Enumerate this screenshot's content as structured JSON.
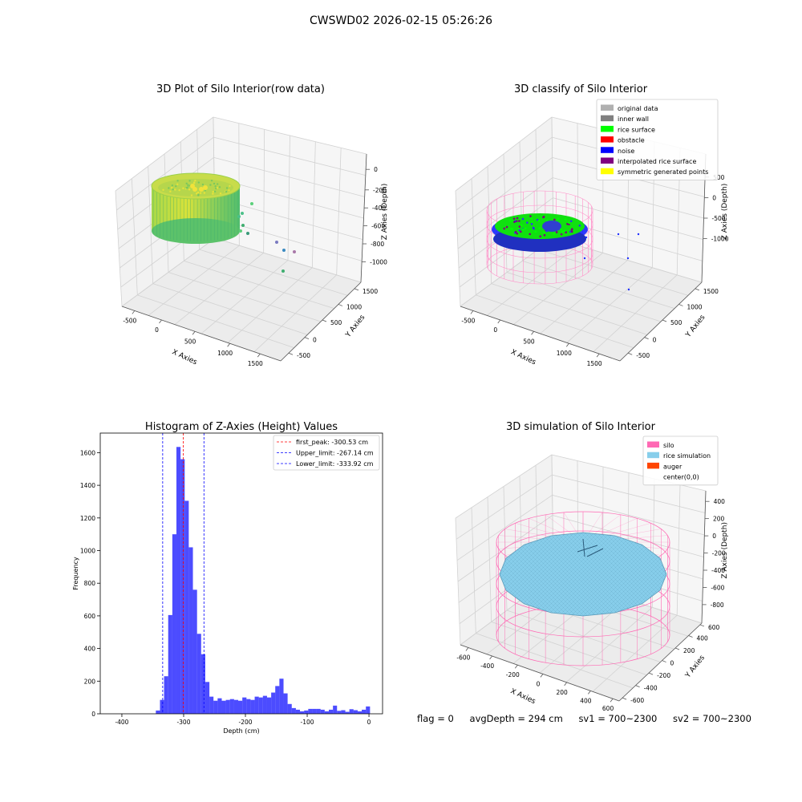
{
  "figure_title": "CWSWD02 2026-02-15 05:26:26",
  "status": {
    "flag": "flag = 0",
    "avg_depth": "avgDepth = 294 cm",
    "sv1": "sv1 = 700~2300",
    "sv2": "sv2 = 700~2300"
  },
  "chart_data": [
    {
      "type": "scatter",
      "projection": "3d",
      "title": "3D Plot of Silo Interior(row data)",
      "xlabel": "X Axies",
      "ylabel": "Y Axies",
      "zlabel": "Z Axies (Depth)",
      "x_ticks": [
        "-500",
        "0",
        "500",
        "1000",
        "1500"
      ],
      "y_ticks": [
        "-500",
        "0",
        "500",
        "1000",
        "1500"
      ],
      "z_ticks": [
        "0",
        "-200",
        "-400",
        "-600",
        "-800",
        "-1000"
      ],
      "xlim": [
        -650,
        1650
      ],
      "ylim": [
        -650,
        1650
      ],
      "zlim": [
        -1050,
        50
      ],
      "colormap": "viridis",
      "shape": "cylindrical rice surface point cloud",
      "outlier_points": [
        {
          "x": 1200,
          "y": 1150,
          "z": -650
        },
        {
          "x": 1300,
          "y": 1100,
          "z": -700
        },
        {
          "x": 1380,
          "y": 1050,
          "z": -720
        },
        {
          "x": 1350,
          "y": 1100,
          "z": -870
        },
        {
          "x": 900,
          "y": 950,
          "z": -350
        },
        {
          "x": 950,
          "y": 900,
          "z": -550
        }
      ]
    },
    {
      "type": "scatter",
      "projection": "3d",
      "title": "3D classify of Silo Interior",
      "xlabel": "X Axies",
      "ylabel": "Y Axies",
      "zlabel": "Z Axies (Depth)",
      "x_ticks": [
        "-500",
        "0",
        "500",
        "1000",
        "1500"
      ],
      "y_ticks": [
        "-500",
        "0",
        "500",
        "1000",
        "1500"
      ],
      "z_ticks": [
        "500",
        "0",
        "-500",
        "-1000"
      ],
      "xlim": [
        -650,
        1650
      ],
      "ylim": [
        -650,
        1650
      ],
      "zlim": [
        -1050,
        550
      ],
      "legend_position": "top-right",
      "legend": [
        {
          "label": "original data",
          "color": "#b0b0b0"
        },
        {
          "label": "inner wall",
          "color": "#808080"
        },
        {
          "label": "rice surface",
          "color": "#00ff00"
        },
        {
          "label": "obstacle",
          "color": "#ff0000"
        },
        {
          "label": "noise",
          "color": "#0000ff"
        },
        {
          "label": "interpolated rice surface",
          "color": "#800080"
        },
        {
          "label": "symmetric generated points",
          "color": "#ffff00"
        }
      ]
    },
    {
      "type": "histogram",
      "title": "Histogram of Z-Axies (Height) Values",
      "xlabel": "Depth (cm)",
      "ylabel": "Frequency",
      "xlim": [
        -435,
        22
      ],
      "ylim": [
        0,
        1720
      ],
      "x_ticks": [
        -400,
        -300,
        -200,
        -100,
        0
      ],
      "y_ticks": [
        0,
        200,
        400,
        600,
        800,
        1000,
        1200,
        1400,
        1600
      ],
      "bar_color": "#0000ff",
      "bar_alpha": 0.7,
      "bin_width": 6.67,
      "bins": [
        {
          "x0": -345,
          "x1": -338.3,
          "count": 20
        },
        {
          "x0": -338.3,
          "x1": -331.7,
          "count": 85
        },
        {
          "x0": -331.7,
          "x1": -325,
          "count": 230
        },
        {
          "x0": -325,
          "x1": -318.3,
          "count": 605
        },
        {
          "x0": -318.3,
          "x1": -311.7,
          "count": 1100
        },
        {
          "x0": -311.7,
          "x1": -305,
          "count": 1635
        },
        {
          "x0": -305,
          "x1": -298.3,
          "count": 1560
        },
        {
          "x0": -298.3,
          "x1": -291.7,
          "count": 1305
        },
        {
          "x0": -291.7,
          "x1": -285,
          "count": 1020
        },
        {
          "x0": -285,
          "x1": -278.3,
          "count": 760
        },
        {
          "x0": -278.3,
          "x1": -271.7,
          "count": 490
        },
        {
          "x0": -271.7,
          "x1": -265,
          "count": 365
        },
        {
          "x0": -265,
          "x1": -258.3,
          "count": 195
        },
        {
          "x0": -258.3,
          "x1": -251.7,
          "count": 105
        },
        {
          "x0": -251.7,
          "x1": -245,
          "count": 80
        },
        {
          "x0": -245,
          "x1": -238.3,
          "count": 95
        },
        {
          "x0": -238.3,
          "x1": -231.7,
          "count": 80
        },
        {
          "x0": -231.7,
          "x1": -225,
          "count": 85
        },
        {
          "x0": -225,
          "x1": -218.3,
          "count": 90
        },
        {
          "x0": -218.3,
          "x1": -211.7,
          "count": 85
        },
        {
          "x0": -211.7,
          "x1": -205,
          "count": 80
        },
        {
          "x0": -205,
          "x1": -198.3,
          "count": 100
        },
        {
          "x0": -198.3,
          "x1": -191.7,
          "count": 90
        },
        {
          "x0": -191.7,
          "x1": -185,
          "count": 85
        },
        {
          "x0": -185,
          "x1": -178.3,
          "count": 105
        },
        {
          "x0": -178.3,
          "x1": -171.7,
          "count": 100
        },
        {
          "x0": -171.7,
          "x1": -165,
          "count": 110
        },
        {
          "x0": -165,
          "x1": -158.3,
          "count": 100
        },
        {
          "x0": -158.3,
          "x1": -151.7,
          "count": 130
        },
        {
          "x0": -151.7,
          "x1": -145,
          "count": 170
        },
        {
          "x0": -145,
          "x1": -138.3,
          "count": 215
        },
        {
          "x0": -138.3,
          "x1": -131.7,
          "count": 125
        },
        {
          "x0": -131.7,
          "x1": -125,
          "count": 60
        },
        {
          "x0": -125,
          "x1": -118.3,
          "count": 35
        },
        {
          "x0": -118.3,
          "x1": -111.7,
          "count": 25
        },
        {
          "x0": -111.7,
          "x1": -105,
          "count": 15
        },
        {
          "x0": -105,
          "x1": -98.3,
          "count": 20
        },
        {
          "x0": -98.3,
          "x1": -91.7,
          "count": 30
        },
        {
          "x0": -91.7,
          "x1": -85,
          "count": 30
        },
        {
          "x0": -85,
          "x1": -78.3,
          "count": 30
        },
        {
          "x0": -78.3,
          "x1": -71.7,
          "count": 25
        },
        {
          "x0": -71.7,
          "x1": -65,
          "count": 15
        },
        {
          "x0": -65,
          "x1": -58.3,
          "count": 25
        },
        {
          "x0": -58.3,
          "x1": -51.7,
          "count": 50
        }
      ],
      "vlines": [
        {
          "label": "first_peak: -300.53 cm",
          "x": -300.53,
          "color": "#ff0000"
        },
        {
          "label": "Upper_limit: -267.14 cm",
          "x": -267.14,
          "color": "#0000ff"
        },
        {
          "label": "Lower_limit: -333.92 cm",
          "x": -333.92,
          "color": "#0000ff"
        }
      ],
      "legend_position": "top-right"
    },
    {
      "type": "surface",
      "projection": "3d",
      "title": "3D simulation of Silo Interior",
      "xlabel": "X Axies",
      "ylabel": "Y Axies",
      "zlabel": "Z Axies (Depth)",
      "x_ticks": [
        "-600",
        "-400",
        "-200",
        "0",
        "200",
        "400",
        "600"
      ],
      "y_ticks": [
        "-600",
        "-400",
        "-200",
        "0",
        "200",
        "400",
        "600"
      ],
      "z_ticks": [
        "400",
        "200",
        "0",
        "-200",
        "-400",
        "-600",
        "-800"
      ],
      "xlim": [
        -650,
        650
      ],
      "ylim": [
        -650,
        650
      ],
      "zlim": [
        -900,
        450
      ],
      "legend_position": "top-right",
      "legend": [
        {
          "label": "silo",
          "color": "#ff69b4"
        },
        {
          "label": "rice simulation",
          "color": "#87ceeb"
        },
        {
          "label": "auger",
          "color": "#ff4500"
        },
        {
          "label": "center(0,0)",
          "color": ""
        }
      ]
    }
  ]
}
